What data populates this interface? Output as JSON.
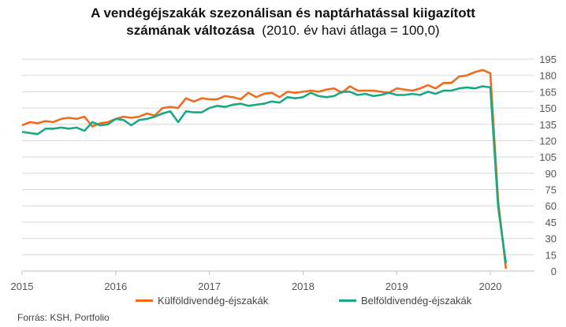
{
  "chart_data": {
    "type": "line",
    "title_line1": "A vendégéjszakák szezonálisan és naptárhatással kiigazított",
    "title_line2_bold": "számának változása",
    "title_line2_normal": "(2010. év havi átlaga = 100,0)",
    "x_ticks": [
      "2015",
      "2016",
      "2017",
      "2018",
      "2019",
      "2020"
    ],
    "y_ticks": [
      0,
      15,
      30,
      45,
      60,
      75,
      90,
      105,
      120,
      135,
      150,
      165,
      180,
      195
    ],
    "ylim": [
      0,
      200
    ],
    "xlim": [
      2015.0,
      2020.36
    ],
    "grid": "horizontal",
    "legend_position": "bottom",
    "series": [
      {
        "name": "Külföldivendég-éjszakák",
        "color": "#f26b1d",
        "values": [
          134,
          137,
          136,
          138,
          137,
          140,
          141,
          140,
          142,
          133,
          136,
          137,
          140,
          142,
          141,
          142,
          145,
          143,
          150,
          151,
          150,
          159,
          156,
          159,
          158,
          158,
          161,
          160,
          158,
          164,
          160,
          163,
          164,
          160,
          165,
          164,
          165,
          166,
          165,
          167,
          168,
          164,
          170,
          166,
          166,
          166,
          165,
          164,
          168,
          167,
          166,
          168,
          171,
          168,
          173,
          173,
          179,
          180,
          183,
          185,
          182,
          65,
          2
        ]
      },
      {
        "name": "Belföldivendég-éjszakák",
        "color": "#1aa982",
        "values": [
          128,
          127,
          126,
          131,
          131,
          132,
          131,
          132,
          129,
          137,
          134,
          135,
          140,
          139,
          134,
          139,
          140,
          142,
          145,
          147,
          137,
          147,
          146,
          146,
          150,
          152,
          151,
          153,
          154,
          152,
          153,
          154,
          156,
          155,
          160,
          159,
          160,
          164,
          161,
          160,
          161,
          165,
          165,
          162,
          163,
          161,
          162,
          164,
          162,
          162,
          163,
          162,
          165,
          163,
          166,
          166,
          168,
          169,
          168,
          170,
          169,
          59,
          7
        ]
      }
    ]
  },
  "source": "Forrás: KSH, Portfolio"
}
